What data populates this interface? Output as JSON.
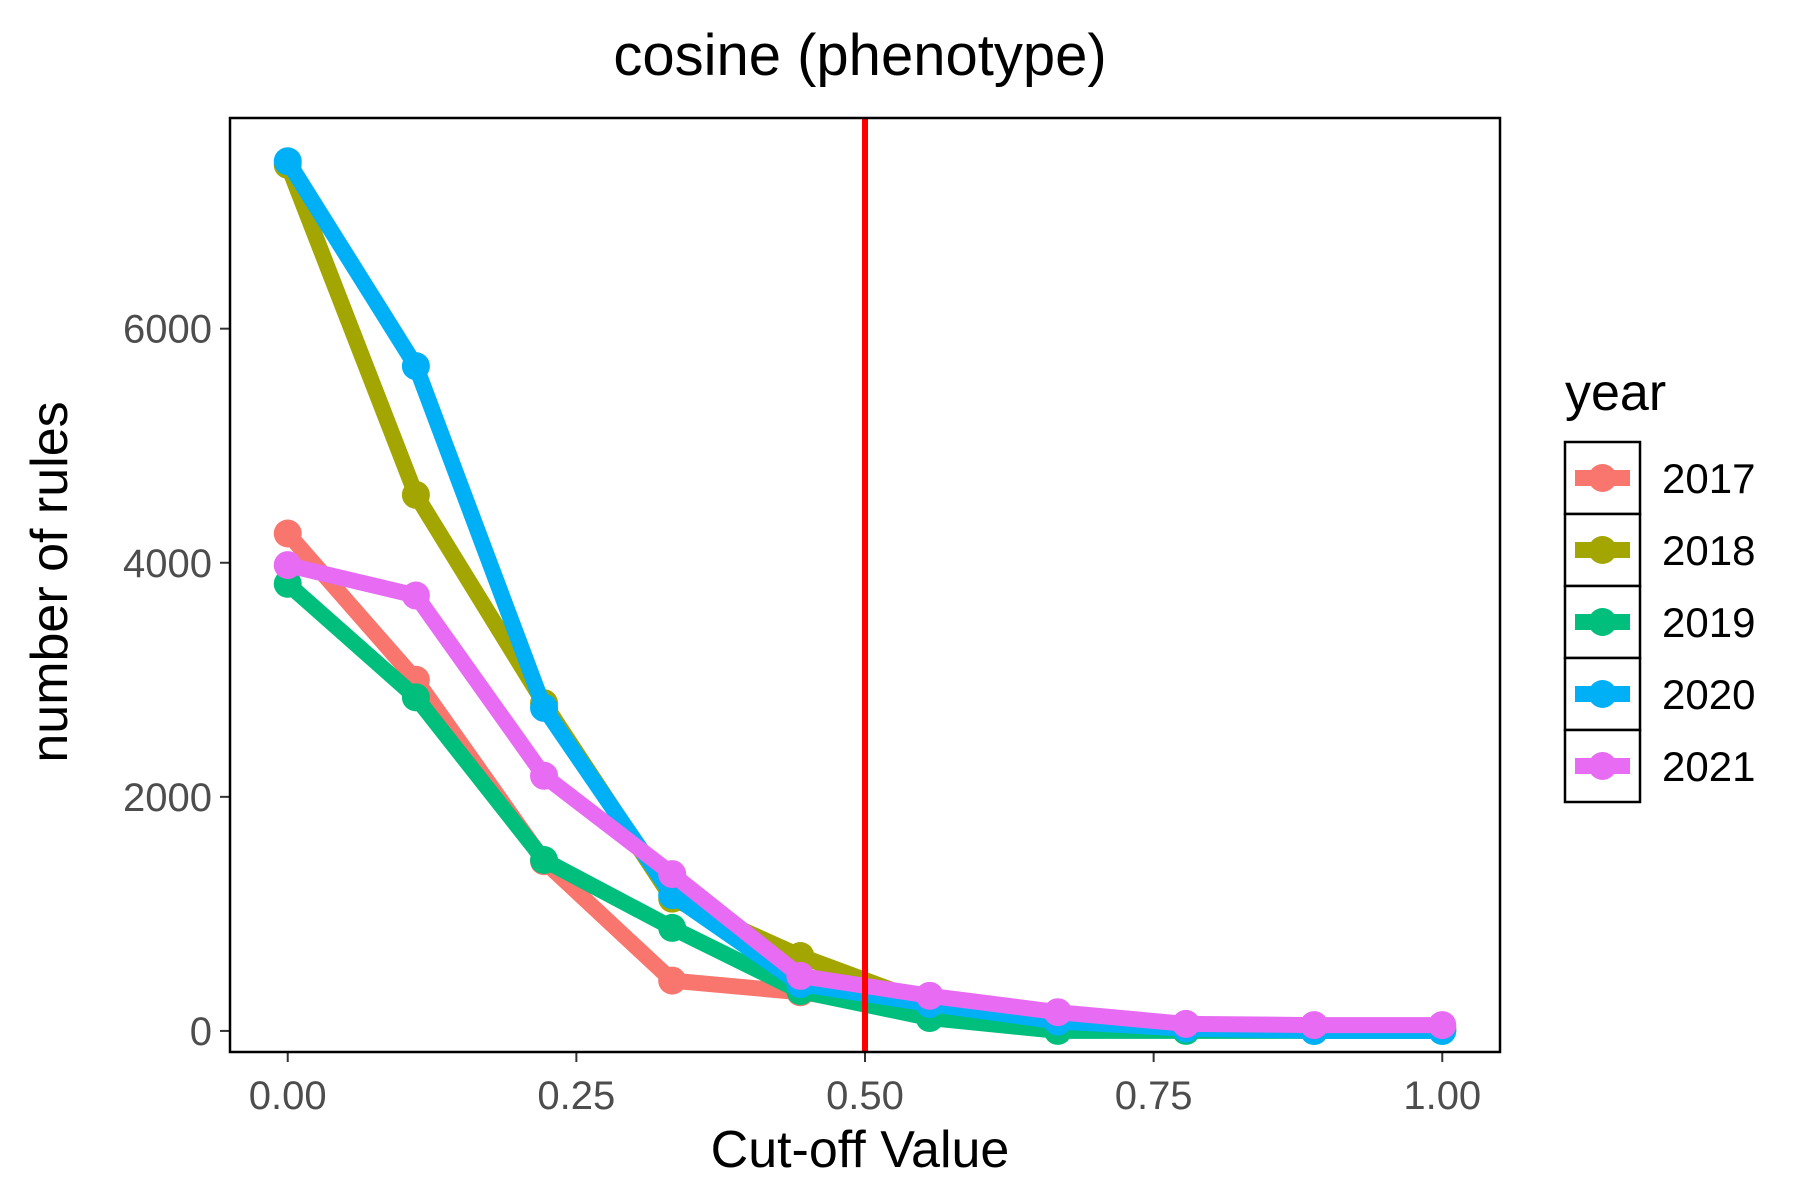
{
  "chart_data": {
    "type": "line",
    "title": "cosine (phenotype)",
    "xlabel": "Cut-off Value",
    "ylabel": "number of rules",
    "xlim": [
      -0.05,
      1.05
    ],
    "ylim": [
      -180,
      7800
    ],
    "x_ticks": [
      0,
      0.25,
      0.5,
      0.75,
      1
    ],
    "x_tick_labels": [
      "0.00",
      "0.25",
      "0.50",
      "0.75",
      "1.00"
    ],
    "y_ticks": [
      0,
      2000,
      4000,
      6000
    ],
    "y_tick_labels": [
      "0",
      "2000",
      "4000",
      "6000"
    ],
    "grid": false,
    "legend": {
      "title": "year",
      "position": "right"
    },
    "x": [
      0,
      0.111,
      0.222,
      0.333,
      0.444,
      0.556,
      0.667,
      0.778,
      0.889,
      1.0
    ],
    "series": [
      {
        "name": "2017",
        "color": "#F8766D",
        "values": [
          4250,
          3000,
          1450,
          430,
          330,
          180,
          60,
          30,
          20,
          20
        ]
      },
      {
        "name": "2018",
        "color": "#A3A500",
        "values": [
          7400,
          4580,
          2800,
          1130,
          640,
          230,
          70,
          30,
          20,
          20
        ]
      },
      {
        "name": "2019",
        "color": "#00BF7D",
        "values": [
          3820,
          2850,
          1460,
          880,
          340,
          110,
          0,
          0,
          0,
          0
        ]
      },
      {
        "name": "2020",
        "color": "#00B0F6",
        "values": [
          7430,
          5680,
          2760,
          1160,
          400,
          230,
          80,
          20,
          0,
          0
        ]
      },
      {
        "name": "2021",
        "color": "#E76BF3",
        "values": [
          3980,
          3720,
          2180,
          1340,
          470,
          300,
          160,
          60,
          50,
          50
        ]
      }
    ],
    "annotations": [
      {
        "type": "vline",
        "x": 0.5,
        "color": "#FF0000"
      }
    ]
  }
}
